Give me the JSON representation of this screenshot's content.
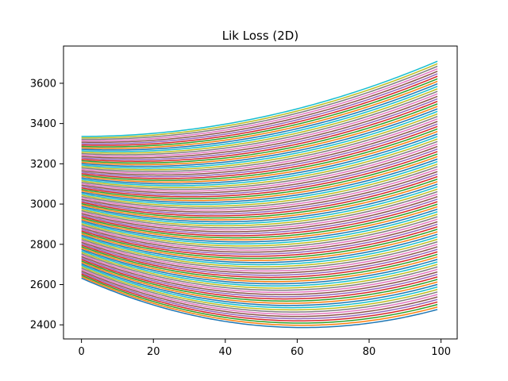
{
  "chart_data": {
    "type": "line",
    "title": "Lik Loss (2D)",
    "xlabel": "",
    "ylabel": "",
    "xlim": [
      -5,
      104.5
    ],
    "ylim": [
      2330,
      3785
    ],
    "x_ticks": [
      0,
      20,
      40,
      60,
      80,
      100
    ],
    "y_ticks": [
      2400,
      2600,
      2800,
      3000,
      3200,
      3400,
      3600
    ],
    "x_range": [
      0,
      99
    ],
    "num_series": 100,
    "grid": false,
    "legend": "none",
    "color_cycle": [
      "#1f77b4",
      "#ff7f0e",
      "#2ca02c",
      "#d62728",
      "#9467bd",
      "#8c564b",
      "#e377c2",
      "#7f7f7f",
      "#bcbd22",
      "#17becf"
    ],
    "series_model": {
      "description_of_values": "y(x) = a + b*x + c*x^2 for x in 0..99; coefficients interpolated linearly from first to last series",
      "first": {
        "a": 2632,
        "b": -7.95,
        "c": 0.0644
      },
      "last": {
        "a": 3336,
        "b": 0.0,
        "c": 0.0381
      }
    }
  }
}
